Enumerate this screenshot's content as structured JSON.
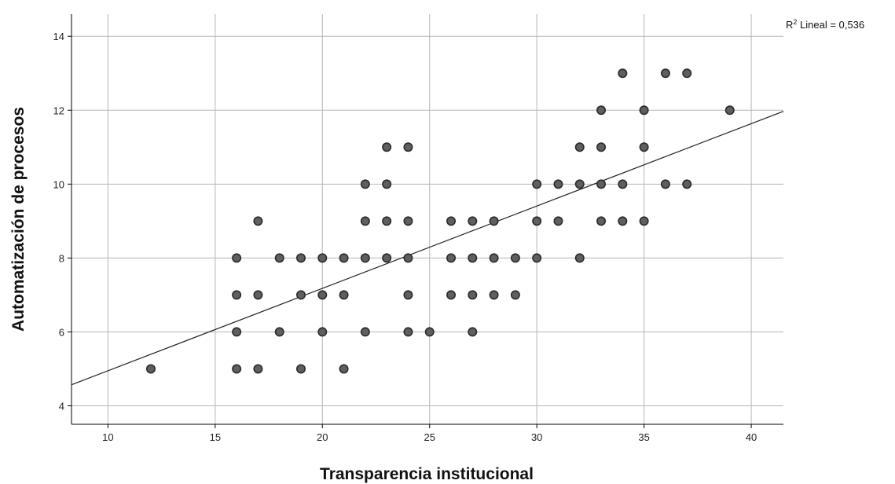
{
  "chart_data": {
    "type": "scatter",
    "xlabel": "Transparencia institucional",
    "ylabel": "Automatización de procesos",
    "xlim": [
      8.3,
      41.5
    ],
    "ylim": [
      3.5,
      14.6
    ],
    "x_ticks": [
      10,
      15,
      20,
      25,
      30,
      35,
      40
    ],
    "y_ticks": [
      4,
      6,
      8,
      10,
      12,
      14
    ],
    "grid": true,
    "fit_line": {
      "type": "linear",
      "r2_prefix": "R",
      "r2_superscript": "2",
      "r2_text": " Lineal = 0,536",
      "points": [
        [
          8.3,
          4.57
        ],
        [
          41.5,
          11.97
        ]
      ]
    },
    "colors": {
      "marker_fill": "#5f5f5f",
      "marker_stroke": "#2b2b2b",
      "grid": "#b5b5b5",
      "axis": "#000000",
      "fit_line": "#222222"
    },
    "points": [
      [
        12,
        5
      ],
      [
        16,
        5
      ],
      [
        16,
        6
      ],
      [
        16,
        7
      ],
      [
        16,
        8
      ],
      [
        17,
        5
      ],
      [
        17,
        7
      ],
      [
        17,
        9
      ],
      [
        18,
        6
      ],
      [
        18,
        8
      ],
      [
        19,
        5
      ],
      [
        19,
        7
      ],
      [
        19,
        8
      ],
      [
        20,
        6
      ],
      [
        20,
        7
      ],
      [
        20,
        8
      ],
      [
        21,
        5
      ],
      [
        21,
        7
      ],
      [
        21,
        8
      ],
      [
        22,
        6
      ],
      [
        22,
        8
      ],
      [
        22,
        9
      ],
      [
        22,
        10
      ],
      [
        23,
        8
      ],
      [
        23,
        9
      ],
      [
        23,
        10
      ],
      [
        23,
        11
      ],
      [
        24,
        6
      ],
      [
        24,
        7
      ],
      [
        24,
        8
      ],
      [
        24,
        9
      ],
      [
        24,
        11
      ],
      [
        25,
        6
      ],
      [
        26,
        7
      ],
      [
        26,
        8
      ],
      [
        26,
        9
      ],
      [
        27,
        6
      ],
      [
        27,
        7
      ],
      [
        27,
        8
      ],
      [
        27,
        9
      ],
      [
        28,
        7
      ],
      [
        28,
        8
      ],
      [
        28,
        9
      ],
      [
        29,
        7
      ],
      [
        29,
        8
      ],
      [
        30,
        8
      ],
      [
        30,
        9
      ],
      [
        30,
        10
      ],
      [
        31,
        9
      ],
      [
        31,
        10
      ],
      [
        32,
        8
      ],
      [
        32,
        10
      ],
      [
        32,
        11
      ],
      [
        33,
        9
      ],
      [
        33,
        10
      ],
      [
        33,
        11
      ],
      [
        33,
        12
      ],
      [
        34,
        9
      ],
      [
        34,
        10
      ],
      [
        34,
        13
      ],
      [
        35,
        9
      ],
      [
        35,
        11
      ],
      [
        35,
        12
      ],
      [
        36,
        10
      ],
      [
        36,
        13
      ],
      [
        37,
        10
      ],
      [
        37,
        13
      ],
      [
        39,
        12
      ]
    ]
  }
}
